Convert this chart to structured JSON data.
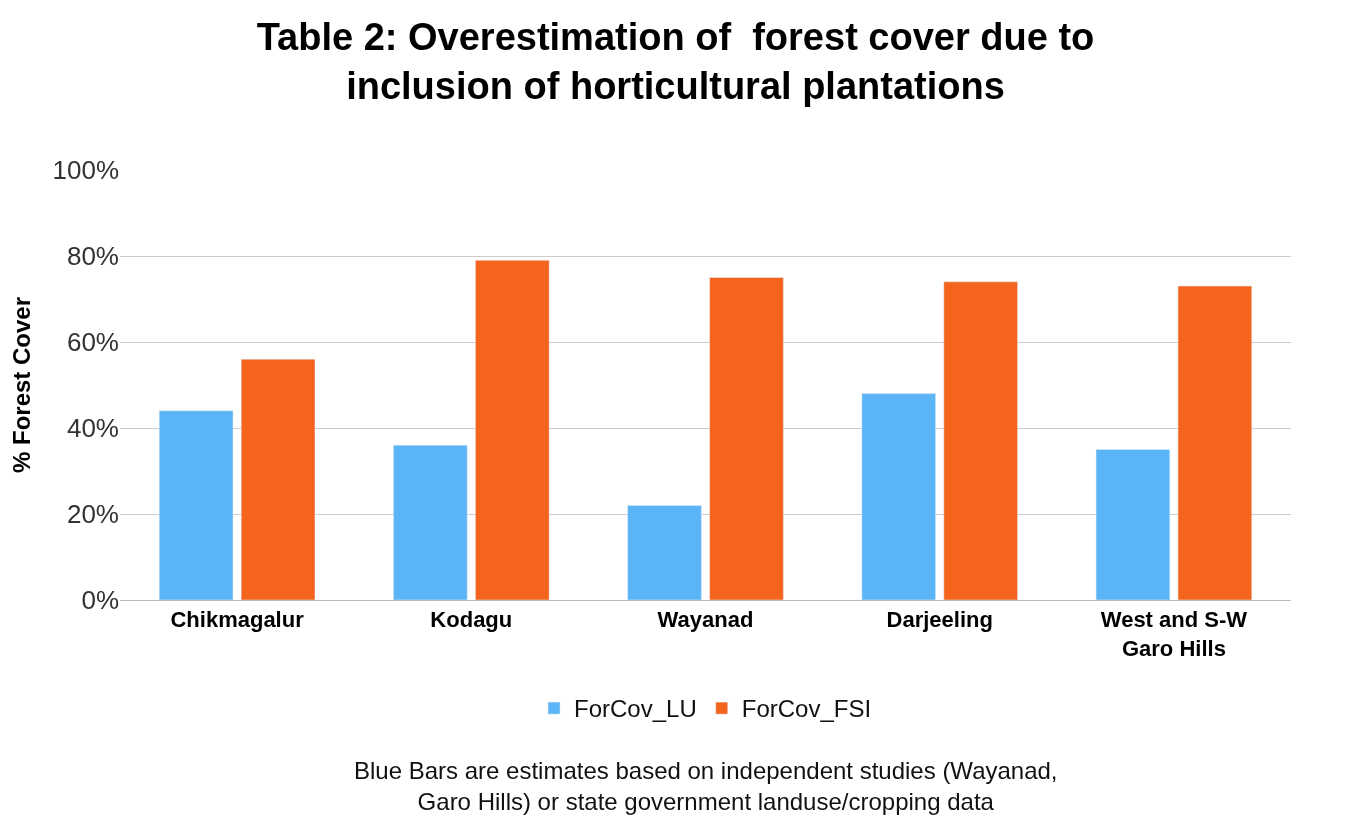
{
  "chart_data": {
    "type": "bar",
    "title": "Table 2: Overestimation of  forest cover due to\ninclusion of horticultural plantations",
    "ylabel": "% Forest Cover",
    "categories": [
      "Chikmagalur",
      "Kodagu",
      "Wayanad",
      "Darjeeling",
      "West and S-W\nGaro Hills"
    ],
    "series": [
      {
        "name": "ForCov_LU",
        "color": "#5bb4f5",
        "values": [
          44,
          36,
          22,
          48,
          35
        ]
      },
      {
        "name": "ForCov_FSI",
        "color": "#f4641c",
        "values": [
          56,
          79,
          75,
          74,
          73
        ]
      }
    ],
    "ylim": [
      0,
      100
    ],
    "yticks": [
      {
        "value": 0,
        "label": "0%"
      },
      {
        "value": 20,
        "label": "20%"
      },
      {
        "value": 40,
        "label": "40%"
      },
      {
        "value": 60,
        "label": "60%"
      },
      {
        "value": 80,
        "label": "80%"
      },
      {
        "value": 100,
        "label": "100%"
      }
    ],
    "grid": "y",
    "legend": "bottom",
    "annotations": [
      "Blue Bars are estimates based on independent studies (Wayanad,\nGaro Hills) or state government landuse/cropping data"
    ]
  }
}
